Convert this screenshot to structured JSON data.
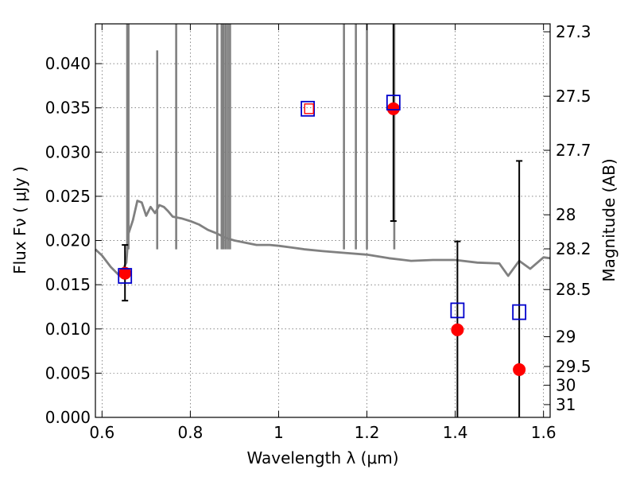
{
  "chart_data": {
    "type": "scatter",
    "xlabel": "Wavelength  λ (μm)",
    "ylabel": "Flux  Fν  ( μJy )",
    "ylabel_right": "Magnitude (AB)",
    "xlim": [
      0.585,
      1.615
    ],
    "ylim": [
      0.0,
      0.0445
    ],
    "x_ticks": [
      "0.6",
      "0.8",
      "1",
      "1.2",
      "1.4",
      "1.6"
    ],
    "y_ticks": [
      "0.000",
      "0.005",
      "0.010",
      "0.015",
      "0.020",
      "0.025",
      "0.030",
      "0.035",
      "0.040"
    ],
    "right_ticks": [
      "27.3",
      "27.5",
      "27.7",
      "28",
      "28.2",
      "28.5",
      "29",
      "29.5",
      "30",
      "31"
    ],
    "grid": true,
    "colors": {
      "spectrum": "#808080",
      "observed": "#ff0000",
      "model_box": "#0000cc",
      "errorbar": "#000000"
    },
    "series": [
      {
        "kind": "template-spectrum",
        "x": [
          0.585,
          0.6,
          0.62,
          0.64,
          0.655,
          0.66,
          0.67,
          0.68,
          0.69,
          0.7,
          0.71,
          0.72,
          0.73,
          0.74,
          0.75,
          0.76,
          0.78,
          0.8,
          0.82,
          0.84,
          0.86,
          0.88,
          0.9,
          0.92,
          0.95,
          0.98,
          1.0,
          1.03,
          1.06,
          1.1,
          1.15,
          1.2,
          1.25,
          1.3,
          1.35,
          1.4,
          1.45,
          1.5,
          1.52,
          1.545,
          1.57,
          1.6,
          1.615
        ],
        "y": [
          0.019,
          0.0183,
          0.017,
          0.016,
          0.0175,
          0.0208,
          0.0223,
          0.0245,
          0.0243,
          0.0228,
          0.0238,
          0.0231,
          0.024,
          0.0238,
          0.0233,
          0.0227,
          0.0225,
          0.0222,
          0.0218,
          0.0212,
          0.0208,
          0.0203,
          0.02,
          0.0198,
          0.0195,
          0.0195,
          0.0194,
          0.0192,
          0.019,
          0.0188,
          0.0186,
          0.0184,
          0.018,
          0.0177,
          0.0178,
          0.0178,
          0.0175,
          0.0174,
          0.016,
          0.0177,
          0.0168,
          0.0181,
          0.018
        ]
      },
      {
        "kind": "emission-lines",
        "x": [
          0.657,
          0.66,
          0.725,
          0.768,
          0.861,
          0.871,
          0.875,
          0.88,
          0.885,
          0.89,
          1.148,
          1.175,
          1.2,
          1.262
        ],
        "peak": [
          0.0445,
          0.0445,
          0.0415,
          0.0445,
          0.0445,
          0.0445,
          0.0445,
          0.0445,
          0.0445,
          0.0445,
          0.0445,
          0.0445,
          0.0445,
          0.0445
        ]
      },
      {
        "kind": "observed-flux",
        "points": [
          {
            "x": 0.652,
            "y": 0.0163,
            "err_lo": 0.0132,
            "err_hi": 0.0195
          },
          {
            "x": 1.26,
            "y": 0.0349,
            "err_lo": 0.0222,
            "err_hi": 0.0445
          },
          {
            "x": 1.405,
            "y": 0.0099,
            "err_lo": 0.0,
            "err_hi": 0.0199
          },
          {
            "x": 1.545,
            "y": 0.0054,
            "err_lo": 0.0,
            "err_hi": 0.029
          }
        ]
      },
      {
        "kind": "model-photometry",
        "points": [
          {
            "x": 0.652,
            "y": 0.016
          },
          {
            "x": 1.066,
            "y": 0.0349
          },
          {
            "x": 1.26,
            "y": 0.0356
          },
          {
            "x": 1.405,
            "y": 0.0121
          },
          {
            "x": 1.545,
            "y": 0.0119
          }
        ]
      },
      {
        "kind": "observed-flux-open",
        "points": [
          {
            "x": 1.068,
            "y": 0.0349
          }
        ]
      }
    ]
  }
}
